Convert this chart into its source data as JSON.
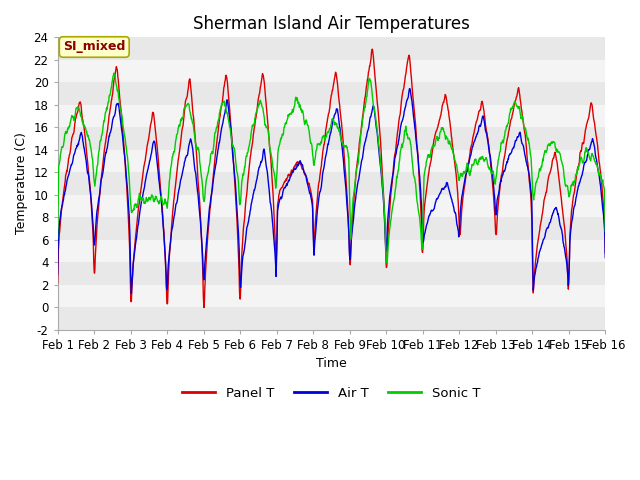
{
  "title": "Sherman Island Air Temperatures",
  "xlabel": "Time",
  "ylabel": "Temperature (C)",
  "ylim": [
    -2,
    24
  ],
  "yticks": [
    -2,
    0,
    2,
    4,
    6,
    8,
    10,
    12,
    14,
    16,
    18,
    20,
    22,
    24
  ],
  "xtick_labels": [
    "Feb 1",
    "Feb 2",
    "Feb 3",
    "Feb 4",
    "Feb 5",
    "Feb 6",
    "Feb 7",
    "Feb 8",
    "Feb 9",
    "Feb 10",
    "Feb 11",
    "Feb 12",
    "Feb 13",
    "Feb 14",
    "Feb 15",
    "Feb 16"
  ],
  "legend_labels": [
    "Panel T",
    "Air T",
    "Sonic T"
  ],
  "line_colors": [
    "#dd0000",
    "#0000dd",
    "#00cc00"
  ],
  "annotation_text": "SI_mixed",
  "annotation_color": "#8B0000",
  "annotation_bg": "#ffffcc",
  "title_fontsize": 12,
  "axis_fontsize": 9,
  "tick_fontsize": 8.5,
  "n_points": 1500,
  "band_colors": [
    "#e8e8e8",
    "#f4f4f4"
  ]
}
